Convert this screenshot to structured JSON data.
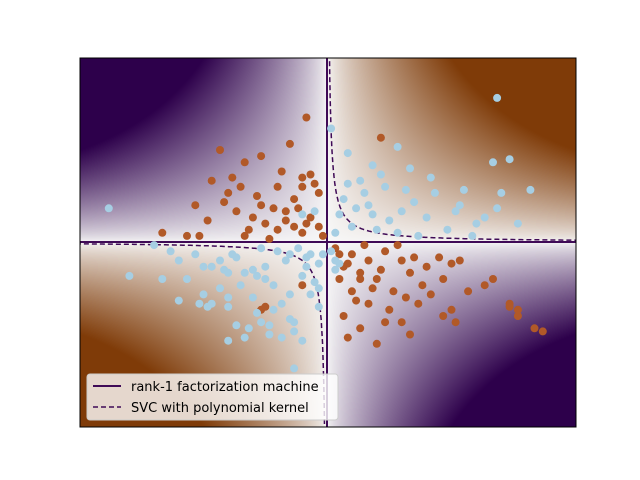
{
  "chart_data": {
    "type": "scatter",
    "title": "",
    "xlabel": "",
    "ylabel": "",
    "xlim": [
      -3,
      3
    ],
    "ylim": [
      -3,
      3
    ],
    "axes_ticks_visible": false,
    "grid": false,
    "colors": {
      "class_pos": "#b15928",
      "class_neg": "#a6cee3",
      "boundary": "#3f0a56",
      "cmap_high": "#7f3b08",
      "cmap_mid": "#f7f7f7",
      "cmap_low": "#2d004b"
    },
    "decision_function": "x * y",
    "series": [
      {
        "name": "",
        "class": "positive",
        "color": "#b15928",
        "points": [
          [
            -0.25,
            2.03
          ],
          [
            -1.3,
            1.5
          ],
          [
            -1.4,
            1.0
          ],
          [
            -1.0,
            1.3
          ],
          [
            -0.6,
            0.9
          ],
          [
            -0.3,
            0.9
          ],
          [
            -0.1,
            0.8
          ],
          [
            -0.4,
            0.7
          ],
          [
            -0.8,
            0.6
          ],
          [
            -1.1,
            0.5
          ],
          [
            -0.5,
            0.5
          ],
          [
            -0.2,
            0.4
          ],
          [
            -0.9,
            0.4
          ],
          [
            -1.7,
            0.1
          ],
          [
            -0.6,
            0.2
          ],
          [
            -0.3,
            0.15
          ],
          [
            -1.0,
            0.1
          ],
          [
            -0.7,
            0.05
          ],
          [
            -1.6,
            0.6
          ],
          [
            -0.15,
            0.95
          ],
          [
            -0.45,
            1.6
          ],
          [
            -1.05,
            0.9
          ],
          [
            -0.85,
            0.75
          ],
          [
            -1.25,
            0.65
          ],
          [
            -0.55,
            1.15
          ],
          [
            -0.35,
            0.55
          ],
          [
            -0.75,
            0.3
          ],
          [
            -1.45,
            0.35
          ],
          [
            -0.25,
            0.3
          ],
          [
            -0.95,
            0.2
          ],
          [
            -2.0,
            0.15
          ],
          [
            -0.1,
            0.25
          ],
          [
            -0.65,
            0.55
          ],
          [
            -1.15,
            1.05
          ],
          [
            -0.5,
            0.35
          ],
          [
            -1.55,
            0.1
          ],
          [
            -0.2,
            1.1
          ],
          [
            -0.8,
            1.4
          ],
          [
            -1.2,
            0.8
          ],
          [
            -0.4,
            0.25
          ],
          [
            -0.3,
            1.05
          ],
          [
            -0.05,
            0.1
          ],
          [
            0.1,
            -0.1
          ],
          [
            0.3,
            -0.2
          ],
          [
            0.5,
            -0.3
          ],
          [
            0.2,
            -0.4
          ],
          [
            0.7,
            -0.15
          ],
          [
            0.4,
            -0.5
          ],
          [
            0.9,
            -0.3
          ],
          [
            0.6,
            -0.6
          ],
          [
            1.0,
            -0.5
          ],
          [
            0.3,
            -0.8
          ],
          [
            0.8,
            -0.8
          ],
          [
            1.2,
            -0.4
          ],
          [
            0.5,
            -1.0
          ],
          [
            1.4,
            -0.6
          ],
          [
            1.1,
            -1.0
          ],
          [
            0.2,
            -1.2
          ],
          [
            0.7,
            -1.3
          ],
          [
            1.5,
            -1.1
          ],
          [
            0.4,
            -1.4
          ],
          [
            1.0,
            -1.5
          ],
          [
            2.2,
            -1.0
          ],
          [
            2.0,
            -0.6
          ],
          [
            1.4,
            -1.2
          ],
          [
            0.25,
            -1.55
          ],
          [
            0.9,
            -1.3
          ],
          [
            1.7,
            -0.8
          ],
          [
            0.15,
            -0.6
          ],
          [
            0.45,
            -0.05
          ],
          [
            0.65,
            -0.45
          ],
          [
            1.15,
            -0.7
          ],
          [
            0.35,
            -0.95
          ],
          [
            1.35,
            -0.25
          ],
          [
            0.55,
            -0.75
          ],
          [
            1.6,
            -0.3
          ],
          [
            2.5,
            -1.4
          ],
          [
            0.85,
            -0.05
          ],
          [
            1.05,
            -0.25
          ],
          [
            0.25,
            -0.35
          ],
          [
            0.75,
            -1.1
          ],
          [
            1.25,
            -0.85
          ],
          [
            0.6,
            -1.65
          ],
          [
            0.95,
            -0.9
          ],
          [
            1.5,
            -0.35
          ],
          [
            0.15,
            -0.2
          ],
          [
            2.3,
            -1.2
          ],
          [
            2.6,
            -1.45
          ],
          [
            1.55,
            -1.3
          ],
          [
            2.3,
            -1.1
          ],
          [
            2.2,
            -1.05
          ],
          [
            1.9,
            -0.7
          ],
          [
            0.4,
            -0.6
          ],
          [
            0.65,
            1.7
          ],
          [
            -0.3,
            -0.7
          ],
          [
            -0.8,
            -1.1
          ],
          [
            -0.75,
            -1.05
          ]
        ]
      },
      {
        "name": "",
        "class": "negative",
        "color": "#a6cee3",
        "points": [
          [
            0.05,
            1.85
          ],
          [
            0.25,
            1.45
          ],
          [
            0.55,
            1.25
          ],
          [
            0.85,
            1.55
          ],
          [
            0.4,
            1.0
          ],
          [
            0.7,
            0.9
          ],
          [
            1.0,
            1.2
          ],
          [
            1.3,
            0.8
          ],
          [
            0.2,
            0.7
          ],
          [
            0.5,
            0.6
          ],
          [
            0.9,
            0.5
          ],
          [
            1.2,
            0.4
          ],
          [
            1.6,
            0.6
          ],
          [
            1.9,
            0.4
          ],
          [
            2.3,
            0.3
          ],
          [
            2.1,
            0.8
          ],
          [
            2.0,
            1.3
          ],
          [
            0.3,
            0.25
          ],
          [
            0.6,
            0.2
          ],
          [
            1.1,
            0.1
          ],
          [
            1.45,
            0.2
          ],
          [
            0.15,
            0.45
          ],
          [
            0.75,
            0.35
          ],
          [
            1.75,
            0.1
          ],
          [
            2.05,
            0.55
          ],
          [
            1.25,
            1.05
          ],
          [
            0.45,
            0.8
          ],
          [
            0.95,
            0.85
          ],
          [
            1.55,
            0.5
          ],
          [
            0.1,
            0.15
          ],
          [
            0.35,
            0.55
          ],
          [
            1.8,
            0.3
          ],
          [
            0.65,
            1.1
          ],
          [
            1.05,
            0.65
          ],
          [
            2.45,
            0.85
          ],
          [
            2.2,
            1.35
          ],
          [
            1.65,
            0.85
          ],
          [
            0.85,
            0.15
          ],
          [
            0.25,
            0.95
          ],
          [
            0.55,
            0.45
          ],
          [
            -0.2,
            -0.2
          ],
          [
            -0.5,
            -0.3
          ],
          [
            -0.8,
            -0.1
          ],
          [
            -1.1,
            -0.25
          ],
          [
            -0.3,
            -0.55
          ],
          [
            -0.65,
            -0.7
          ],
          [
            -1.0,
            -0.5
          ],
          [
            -1.4,
            -0.4
          ],
          [
            -0.2,
            -0.85
          ],
          [
            -0.55,
            -1.0
          ],
          [
            -0.9,
            -0.9
          ],
          [
            -1.3,
            -0.75
          ],
          [
            -1.7,
            -0.6
          ],
          [
            -2.0,
            -0.6
          ],
          [
            -2.1,
            -0.05
          ],
          [
            -1.6,
            -0.2
          ],
          [
            -0.4,
            -1.3
          ],
          [
            -0.8,
            -1.3
          ],
          [
            -1.2,
            -1.05
          ],
          [
            -0.1,
            -1.05
          ],
          [
            -0.7,
            -1.35
          ],
          [
            -1.5,
            -0.85
          ],
          [
            -0.25,
            -0.4
          ],
          [
            -0.9,
            -0.45
          ],
          [
            -0.6,
            -0.15
          ],
          [
            -1.15,
            -0.2
          ],
          [
            -0.35,
            -0.1
          ],
          [
            -0.75,
            -0.6
          ],
          [
            -0.15,
            -0.65
          ],
          [
            -1.9,
            -0.15
          ],
          [
            -2.4,
            -0.55
          ],
          [
            -1.05,
            -0.7
          ],
          [
            -0.45,
            -0.85
          ],
          [
            -1.45,
            -1.05
          ],
          [
            -0.85,
            -0.55
          ],
          [
            -0.1,
            -0.35
          ],
          [
            -1.25,
            -0.45
          ],
          [
            -0.65,
            -1.1
          ],
          [
            -0.3,
            -1.6
          ],
          [
            -1.1,
            -1.35
          ],
          [
            -2.65,
            0.55
          ],
          [
            -0.1,
            -0.75
          ],
          [
            -0.95,
            -1.4
          ],
          [
            -0.05,
            -0.2
          ],
          [
            -1.8,
            -0.3
          ],
          [
            -0.25,
            -0.25
          ],
          [
            -0.75,
            -0.4
          ],
          [
            -0.45,
            -0.2
          ],
          [
            -1.2,
            -0.9
          ],
          [
            -0.55,
            -1.55
          ],
          [
            -1.2,
            -1.6
          ],
          [
            -1.0,
            -1.55
          ],
          [
            -0.7,
            -1.5
          ],
          [
            -0.4,
            -1.45
          ],
          [
            -0.45,
            -1.25
          ],
          [
            -1.4,
            -1.0
          ],
          [
            -0.85,
            -1.15
          ],
          [
            -1.8,
            -0.95
          ],
          [
            -1.55,
            -1.0
          ],
          [
            0.05,
            -0.15
          ],
          [
            0.1,
            -0.3
          ],
          [
            0.15,
            -0.35
          ],
          [
            0.1,
            -0.45
          ],
          [
            2.05,
            2.35
          ],
          [
            -0.15,
            0.5
          ],
          [
            -0.3,
            0.45
          ],
          [
            -1.2,
            -0.5
          ],
          [
            -1.3,
            -0.3
          ],
          [
            -1.5,
            -0.4
          ],
          [
            -0.4,
            -2.05
          ]
        ]
      }
    ]
  },
  "legend": {
    "placement": "lower-left",
    "entries": [
      {
        "label": "rank-1 factorization machine",
        "style": "solid",
        "color": "#3f0a56"
      },
      {
        "label": "SVC with polynomial kernel",
        "style": "dashed",
        "color": "#3f0a56"
      }
    ]
  }
}
